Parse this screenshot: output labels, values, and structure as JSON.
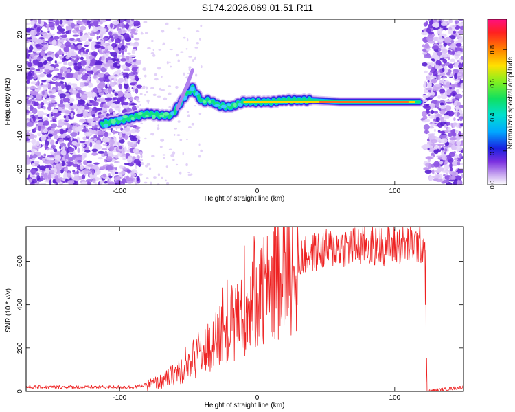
{
  "title": "S174.2026.069.01.51.R11",
  "colors": {
    "snr_line": "#ee2222",
    "axis": "#000000",
    "background": "#ffffff"
  },
  "chart_data": [
    {
      "type": "heatmap",
      "name": "spectrogram",
      "xlabel": "Height of straight line (km)",
      "ylabel": "Frequency (Hz)",
      "xlim": [
        -168,
        150
      ],
      "ylim": [
        -24.5,
        24.5
      ],
      "xticks": [
        -100,
        0,
        100
      ],
      "yticks": [
        -20,
        -10,
        0,
        10,
        20
      ],
      "noise_regions": [
        [
          -168,
          -86
        ],
        [
          122,
          150
        ]
      ],
      "ridge": [
        {
          "x": -113,
          "y": -6.5
        },
        {
          "x": -100,
          "y": -5.5
        },
        {
          "x": -90,
          "y": -4.5
        },
        {
          "x": -80,
          "y": -3.5
        },
        {
          "x": -70,
          "y": -4
        },
        {
          "x": -62,
          "y": -4
        },
        {
          "x": -57,
          "y": -1
        },
        {
          "x": -52,
          "y": 2
        },
        {
          "x": -47,
          "y": 4
        },
        {
          "x": -40,
          "y": 0
        },
        {
          "x": -35,
          "y": 0.5
        },
        {
          "x": -28,
          "y": -1
        },
        {
          "x": -20,
          "y": -1.5
        },
        {
          "x": -10,
          "y": 0
        },
        {
          "x": 0,
          "y": 0
        },
        {
          "x": 10,
          "y": 0
        },
        {
          "x": 20,
          "y": 0.5
        },
        {
          "x": 40,
          "y": 0.5
        },
        {
          "x": 60,
          "y": 0
        },
        {
          "x": 118,
          "y": 0
        }
      ],
      "colorbar": {
        "label": "Normalized spectral amplitude",
        "ticks": [
          "0.0",
          "0.2",
          "0.4",
          "0.6",
          "0.8"
        ],
        "range": [
          0.0,
          0.98
        ]
      }
    },
    {
      "type": "line",
      "name": "snr",
      "xlabel": "Height of straight line (km)",
      "ylabel": "SNR (10 * v/v)",
      "xlim": [
        -168,
        150
      ],
      "ylim": [
        0,
        760
      ],
      "xticks": [
        -100,
        0,
        100
      ],
      "yticks": [
        0,
        200,
        400,
        600
      ],
      "envelope": [
        {
          "x": -168,
          "y": 20
        },
        {
          "x": -90,
          "y": 20
        },
        {
          "x": -80,
          "y": 30
        },
        {
          "x": -70,
          "y": 45
        },
        {
          "x": -60,
          "y": 80
        },
        {
          "x": -50,
          "y": 120
        },
        {
          "x": -40,
          "y": 170
        },
        {
          "x": -30,
          "y": 230
        },
        {
          "x": -20,
          "y": 300
        },
        {
          "x": -10,
          "y": 370
        },
        {
          "x": 0,
          "y": 430
        },
        {
          "x": 10,
          "y": 500
        },
        {
          "x": 20,
          "y": 560
        },
        {
          "x": 30,
          "y": 610
        },
        {
          "x": 40,
          "y": 640
        },
        {
          "x": 50,
          "y": 655
        },
        {
          "x": 60,
          "y": 665
        },
        {
          "x": 80,
          "y": 670
        },
        {
          "x": 100,
          "y": 675
        },
        {
          "x": 122,
          "y": 680
        },
        {
          "x": 123.5,
          "y": 0
        },
        {
          "x": 150,
          "y": 20
        }
      ]
    }
  ]
}
